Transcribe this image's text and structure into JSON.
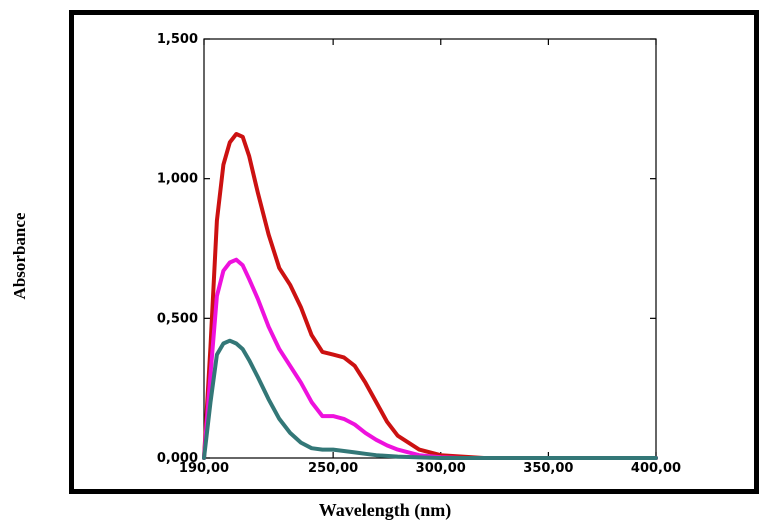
{
  "chart_data": {
    "type": "line",
    "title": "",
    "xlabel": "Wavelength (nm)",
    "ylabel": "Absorbance",
    "xlim": [
      190,
      400
    ],
    "ylim": [
      0,
      1.5
    ],
    "x_ticks": [
      190,
      250,
      300,
      350,
      400
    ],
    "x_tick_labels": [
      "190,00",
      "250,00",
      "300,00",
      "350,00",
      "400,00"
    ],
    "y_ticks": [
      0,
      0.5,
      1.0,
      1.5
    ],
    "y_tick_labels": [
      "0,000",
      "0,500",
      "1,000",
      "1,500"
    ],
    "grid": false,
    "legend": "none",
    "series": [
      {
        "color": "#cc1111",
        "x": [
          190,
          193,
          196,
          199,
          202,
          205,
          208,
          211,
          215,
          220,
          225,
          230,
          235,
          240,
          245,
          250,
          255,
          260,
          265,
          270,
          275,
          280,
          290,
          300,
          310,
          320,
          350,
          400
        ],
        "y": [
          0.0,
          0.4,
          0.85,
          1.05,
          1.13,
          1.16,
          1.15,
          1.08,
          0.95,
          0.8,
          0.68,
          0.62,
          0.54,
          0.44,
          0.38,
          0.37,
          0.36,
          0.33,
          0.27,
          0.2,
          0.13,
          0.08,
          0.03,
          0.01,
          0.005,
          0.0,
          0.0,
          0.0
        ]
      },
      {
        "color": "#ee11dd",
        "x": [
          190,
          193,
          196,
          199,
          202,
          205,
          208,
          211,
          215,
          220,
          225,
          230,
          235,
          240,
          245,
          250,
          255,
          260,
          265,
          270,
          275,
          280,
          290,
          300,
          310,
          350,
          400
        ],
        "y": [
          0.0,
          0.3,
          0.58,
          0.67,
          0.7,
          0.71,
          0.69,
          0.64,
          0.57,
          0.47,
          0.39,
          0.33,
          0.27,
          0.2,
          0.15,
          0.15,
          0.14,
          0.12,
          0.09,
          0.065,
          0.045,
          0.03,
          0.01,
          0.003,
          0.0,
          0.0,
          0.0
        ]
      },
      {
        "color": "#337777",
        "x": [
          190,
          193,
          196,
          199,
          202,
          205,
          208,
          211,
          215,
          220,
          225,
          230,
          235,
          240,
          245,
          250,
          255,
          260,
          265,
          270,
          280,
          290,
          300,
          350,
          400
        ],
        "y": [
          0.0,
          0.2,
          0.37,
          0.41,
          0.42,
          0.41,
          0.39,
          0.35,
          0.29,
          0.21,
          0.14,
          0.09,
          0.055,
          0.035,
          0.03,
          0.03,
          0.025,
          0.02,
          0.015,
          0.01,
          0.005,
          0.002,
          0.0,
          0.0,
          0.0
        ]
      }
    ]
  }
}
